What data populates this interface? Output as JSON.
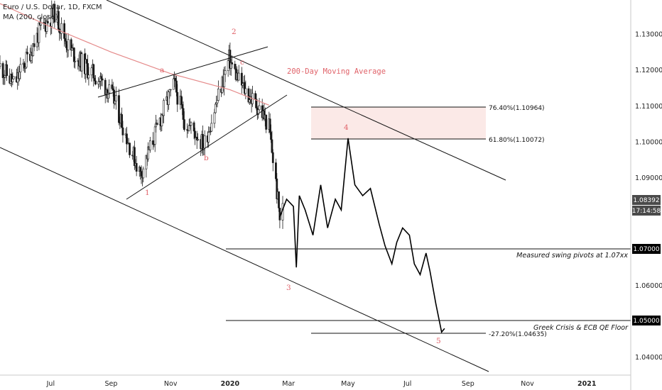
{
  "legend": {
    "symbol": "Euro / U.S. Dollar, 1D, FXCM",
    "indicator": "MA (200, close)"
  },
  "colors": {
    "candle": "#1a1a1a",
    "line": "#000000",
    "ma": "#e58a8a",
    "accent": "#e0636a",
    "zone": "#fbe9e7",
    "price_box": "#4a4a4a",
    "label_box": "#000000"
  },
  "chart_data": {
    "type": "line",
    "symbol": "EUR/USD",
    "interval": "1D",
    "ylim": [
      1.035,
      1.1395
    ],
    "y_ticks": [
      1.13,
      1.12,
      1.11,
      1.1,
      1.09,
      1.06,
      1.04
    ],
    "x_ticks": [
      {
        "label": "Jul",
        "date": "2019-07-01"
      },
      {
        "label": "Sep",
        "date": "2019-09-01"
      },
      {
        "label": "Nov",
        "date": "2019-11-01"
      },
      {
        "label": "2020",
        "date": "2020-01-01"
      },
      {
        "label": "Mar",
        "date": "2020-03-01"
      },
      {
        "label": "May",
        "date": "2020-05-01"
      },
      {
        "label": "Jul",
        "date": "2020-07-01"
      },
      {
        "label": "Sep",
        "date": "2020-09-01"
      },
      {
        "label": "Nov",
        "date": "2020-11-01"
      },
      {
        "label": "2021",
        "date": "2021-01-01"
      }
    ],
    "x_range": [
      "2019-05-10",
      "2021-02-15"
    ],
    "price_path": [
      [
        "2019-05-10",
        1.121
      ],
      [
        "2019-05-25",
        1.116
      ],
      [
        "2019-06-08",
        1.124
      ],
      [
        "2019-06-20",
        1.131
      ],
      [
        "2019-07-05",
        1.136
      ],
      [
        "2019-07-20",
        1.126
      ],
      [
        "2019-08-05",
        1.121
      ],
      [
        "2019-08-25",
        1.116
      ],
      [
        "2019-09-05",
        1.111
      ],
      [
        "2019-09-20",
        1.099
      ],
      [
        "2019-10-01",
        1.091
      ],
      [
        "2019-10-12",
        1.099
      ],
      [
        "2019-10-25",
        1.109
      ],
      [
        "2019-11-05",
        1.116
      ],
      [
        "2019-11-15",
        1.106
      ],
      [
        "2019-11-28",
        1.102
      ],
      [
        "2019-12-05",
        1.099
      ],
      [
        "2019-12-15",
        1.108
      ],
      [
        "2019-12-31",
        1.123
      ],
      [
        "2020-01-10",
        1.117
      ],
      [
        "2020-01-20",
        1.113
      ],
      [
        "2020-02-01",
        1.109
      ],
      [
        "2020-02-10",
        1.104
      ],
      [
        "2020-02-15",
        1.093
      ],
      [
        "2020-02-21",
        1.079
      ],
      [
        "2020-02-28",
        1.084
      ],
      [
        "2020-03-06",
        1.082
      ],
      [
        "2020-03-09",
        1.065
      ],
      [
        "2020-03-12",
        1.085
      ],
      [
        "2020-03-18",
        1.081
      ],
      [
        "2020-03-26",
        1.074
      ],
      [
        "2020-04-03",
        1.088
      ],
      [
        "2020-04-10",
        1.076
      ],
      [
        "2020-04-18",
        1.084
      ],
      [
        "2020-04-24",
        1.081
      ],
      [
        "2020-05-01",
        1.101
      ],
      [
        "2020-05-08",
        1.088
      ],
      [
        "2020-05-16",
        1.085
      ],
      [
        "2020-05-24",
        1.087
      ],
      [
        "2020-06-02",
        1.077
      ],
      [
        "2020-06-08",
        1.071
      ],
      [
        "2020-06-15",
        1.066
      ],
      [
        "2020-06-20",
        1.072
      ],
      [
        "2020-06-26",
        1.076
      ],
      [
        "2020-07-03",
        1.074
      ],
      [
        "2020-07-08",
        1.066
      ],
      [
        "2020-07-14",
        1.063
      ],
      [
        "2020-07-20",
        1.069
      ],
      [
        "2020-07-24",
        1.064
      ],
      [
        "2020-07-30",
        1.055
      ],
      [
        "2020-08-05",
        1.047
      ],
      [
        "2020-08-08",
        1.048
      ]
    ],
    "annotations": [
      {
        "text": "200-Day Moving Average"
      },
      {
        "text": "Measured swing pivots at 1.07xx",
        "level": 1.07
      },
      {
        "text": "Greek Crisis & ECB QE Floor",
        "level": 1.05
      },
      {
        "text": "76.40%(1.10964)",
        "level": 1.10964
      },
      {
        "text": "61.80%(1.10072)",
        "level": 1.10072
      },
      {
        "text": "-27.20%(1.04635)",
        "level": 1.04635
      }
    ],
    "wave_labels": [
      "1",
      "a",
      "b",
      "2",
      "c",
      "3",
      "4",
      "5"
    ],
    "price_labels": {
      "current": "1.08392",
      "countdown": "17:14:58",
      "level_1": "1.07000",
      "level_2": "1.05000"
    }
  }
}
